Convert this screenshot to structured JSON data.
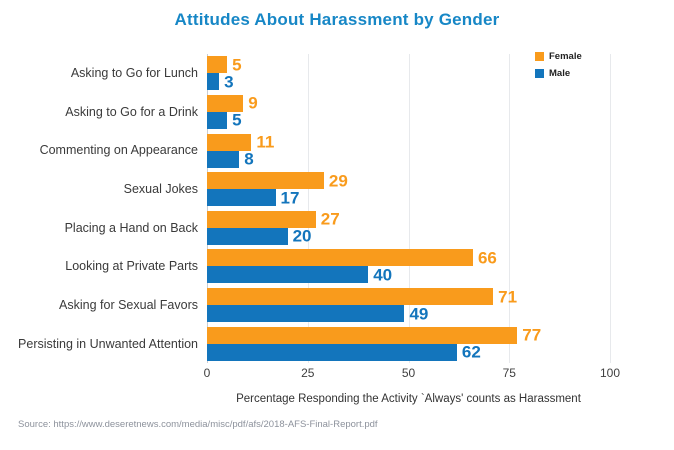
{
  "chart_data": {
    "type": "bar",
    "orientation": "horizontal",
    "title": "Attitudes About Harassment by Gender",
    "categories": [
      "Asking to Go for Lunch",
      "Asking to Go for a Drink",
      "Commenting on Appearance",
      "Sexual Jokes",
      "Placing a Hand on Back",
      "Looking at Private Parts",
      "Asking for Sexual Favors",
      "Persisting in Unwanted Attention"
    ],
    "series": [
      {
        "name": "Female",
        "color": "#F99B1C",
        "values": [
          5,
          9,
          11,
          29,
          27,
          66,
          71,
          77
        ]
      },
      {
        "name": "Male",
        "color": "#1375BC",
        "values": [
          3,
          5,
          8,
          17,
          20,
          40,
          49,
          62
        ]
      }
    ],
    "xlabel": "Percentage Responding the Activity `Always' counts as Harassment",
    "xlim": [
      0,
      100
    ],
    "xticks": [
      0,
      25,
      50,
      75,
      100
    ],
    "grid": "vertical-gridlines",
    "legend_position": "top-right",
    "value_labels": "end-of-bar"
  },
  "colors": {
    "title": "#1787C6",
    "female": "#F99B1C",
    "male": "#1375BC",
    "gridline": "#E7E9EC",
    "axis_line": "#C9CDD3",
    "category_text": "#3A3A3A",
    "source_text": "#8D929C"
  },
  "source_note": "Source: https://www.deseretnews.com/media/misc/pdf/afs/2018-AFS-Final-Report.pdf"
}
